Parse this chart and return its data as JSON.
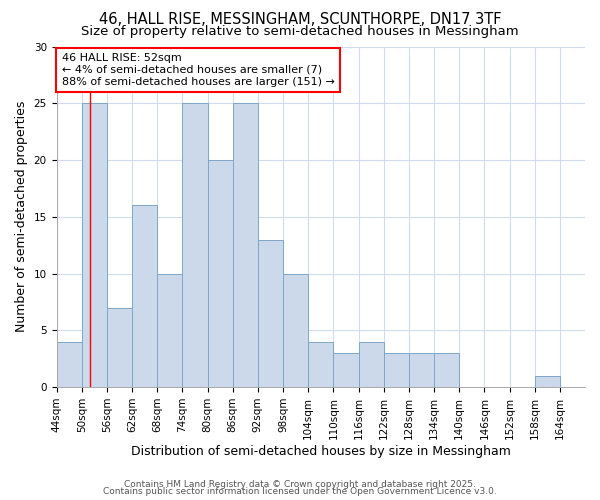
{
  "title1": "46, HALL RISE, MESSINGHAM, SCUNTHORPE, DN17 3TF",
  "title2": "Size of property relative to semi-detached houses in Messingham",
  "xlabel": "Distribution of semi-detached houses by size in Messingham",
  "ylabel": "Number of semi-detached properties",
  "bin_starts": [
    44,
    50,
    56,
    62,
    68,
    74,
    80,
    86,
    92,
    98,
    104,
    110,
    116,
    122,
    128,
    134,
    140,
    146,
    152,
    158,
    164
  ],
  "bin_width": 6,
  "values": [
    4,
    25,
    7,
    16,
    10,
    25,
    20,
    25,
    13,
    10,
    4,
    3,
    4,
    3,
    3,
    3,
    0,
    0,
    0,
    1,
    0
  ],
  "bar_color": "#ccd9ea",
  "bar_edge_color": "#7da7c8",
  "red_line_x": 52,
  "annotation_title": "46 HALL RISE: 52sqm",
  "annotation_line1": "← 4% of semi-detached houses are smaller (7)",
  "annotation_line2": "88% of semi-detached houses are larger (151) →",
  "annotation_box_color": "white",
  "annotation_box_edge": "red",
  "ylim": [
    0,
    30
  ],
  "yticks": [
    0,
    5,
    10,
    15,
    20,
    25,
    30
  ],
  "footer1": "Contains HM Land Registry data © Crown copyright and database right 2025.",
  "footer2": "Contains public sector information licensed under the Open Government Licence v3.0.",
  "background_color": "#ffffff",
  "grid_color": "#d0dcee",
  "title1_fontsize": 10.5,
  "title2_fontsize": 9.5,
  "axis_label_fontsize": 9,
  "tick_fontsize": 7.5,
  "footer_fontsize": 6.5,
  "annotation_fontsize": 8
}
